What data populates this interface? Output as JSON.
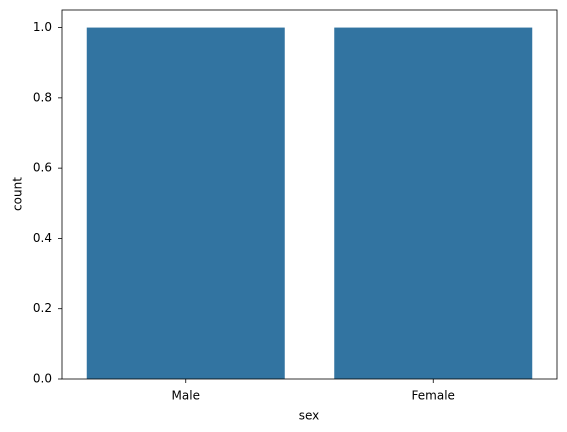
{
  "chart_data": {
    "type": "bar",
    "x_label": "sex",
    "y_label": "count",
    "categories": [
      "Male",
      "Female"
    ],
    "values": [
      1,
      1
    ],
    "color": "#3274a1",
    "ylim": [
      0,
      1.05
    ],
    "yticks": [
      {
        "value": 0,
        "label": "0.0"
      },
      0.2,
      0.4,
      0.6,
      0.8,
      {
        "value": 1,
        "label": "1.0"
      }
    ],
    "grid": false
  }
}
